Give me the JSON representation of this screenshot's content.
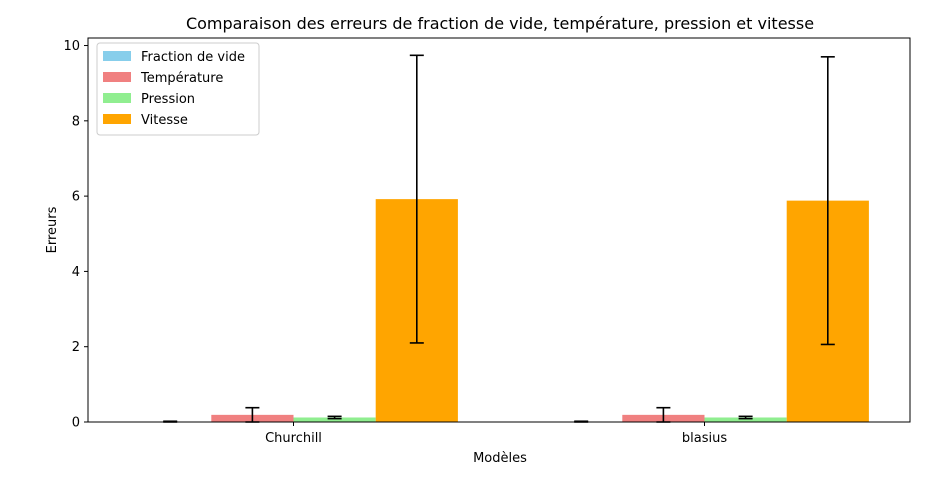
{
  "chart_data": {
    "type": "bar",
    "title": "Comparaison des erreurs de fraction de vide, température, pression et vitesse",
    "xlabel": "Modèles",
    "ylabel": "Erreurs",
    "categories": [
      "Churchill",
      "blasius"
    ],
    "ylim": [
      0,
      10.2
    ],
    "yticks": [
      0,
      2,
      4,
      6,
      8,
      10
    ],
    "legend_position": "top-left",
    "grid": false,
    "series": [
      {
        "name": "Fraction de vide",
        "color": "#87ceeb",
        "values": [
          0.01,
          0.01
        ],
        "errors": [
          0.01,
          0.01
        ]
      },
      {
        "name": "Température",
        "color": "#f08080",
        "values": [
          0.19,
          0.19
        ],
        "errors": [
          0.19,
          0.19
        ]
      },
      {
        "name": "Pression",
        "color": "#90ee90",
        "values": [
          0.12,
          0.12
        ],
        "errors": [
          0.03,
          0.03
        ]
      },
      {
        "name": "Vitesse",
        "color": "#ffa500",
        "values": [
          5.92,
          5.88
        ],
        "errors": [
          3.82,
          3.82
        ]
      }
    ]
  }
}
